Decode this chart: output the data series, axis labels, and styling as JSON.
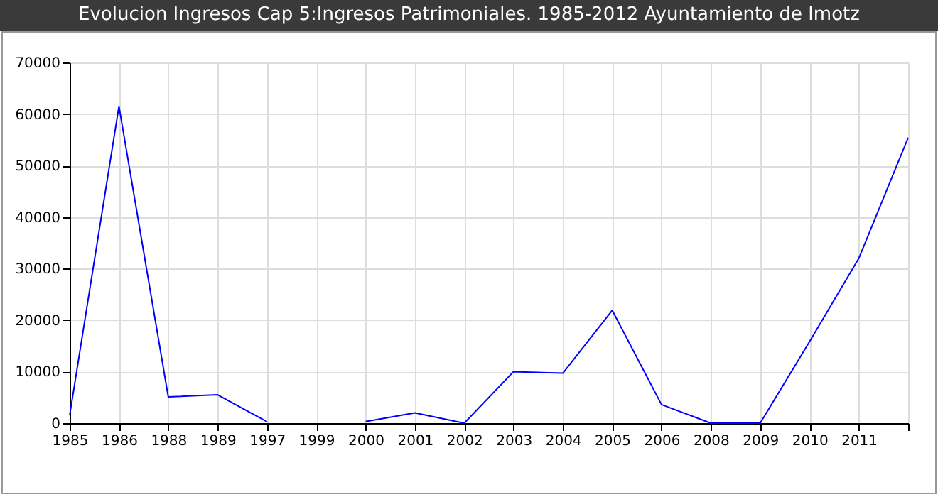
{
  "chart_data": {
    "type": "line",
    "title": "Evolucion Ingresos Cap 5:Ingresos Patrimoniales. 1985-2012 Ayuntamiento de Imotz",
    "categories": [
      "1985",
      "1986",
      "1988",
      "1989",
      "1997",
      "1999",
      "2000",
      "2001",
      "2002",
      "2003",
      "2004",
      "2005",
      "2006",
      "2008",
      "2009",
      "2010",
      "2011",
      null
    ],
    "series": [
      {
        "color": "#0000ff",
        "values": [
          1500,
          61500,
          5100,
          5500,
          300,
          null,
          300,
          2000,
          0,
          10000,
          9700,
          21900,
          3600,
          0,
          0,
          15800,
          32000,
          55400
        ]
      }
    ],
    "ylim": [
      0,
      70000
    ],
    "yticks": [
      0,
      10000,
      20000,
      30000,
      40000,
      50000,
      60000,
      70000
    ],
    "grid": true,
    "legend": false,
    "marker": "none",
    "line_style": "solid"
  }
}
